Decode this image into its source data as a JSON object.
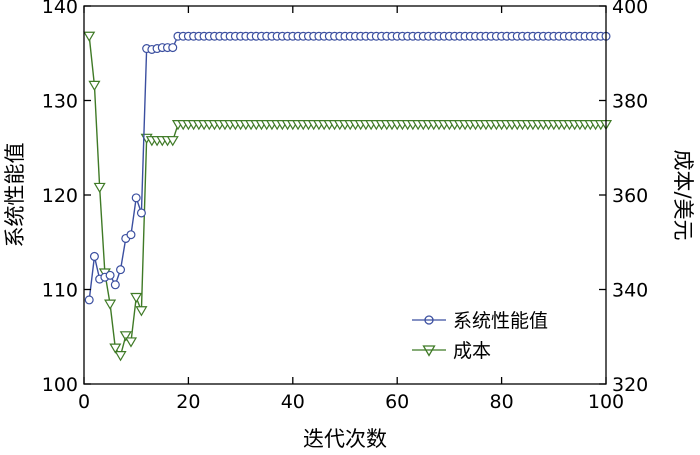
{
  "chart_data": {
    "type": "line",
    "xlabel": "迭代次数",
    "ylabel_left": "系统性能值",
    "ylabel_right": "成本/美元",
    "xlim": [
      0,
      100
    ],
    "ylim_left": [
      100,
      140
    ],
    "ylim_right": [
      320,
      400
    ],
    "xticks": [
      "0",
      "20",
      "40",
      "60",
      "80",
      "100"
    ],
    "yticks_left": [
      "100",
      "110",
      "120",
      "130",
      "140"
    ],
    "yticks_right": [
      "320",
      "340",
      "360",
      "380",
      "400"
    ],
    "grid": false,
    "legend_position": "bottom-right",
    "colors": {
      "performance": "#3b4fa0",
      "cost": "#3f7a26",
      "axis": "#000000"
    },
    "x": [
      1,
      2,
      3,
      4,
      5,
      6,
      7,
      8,
      9,
      10,
      11,
      12,
      13,
      14,
      15,
      16,
      17,
      18,
      19,
      20,
      21,
      22,
      23,
      24,
      25,
      26,
      27,
      28,
      29,
      30,
      31,
      32,
      33,
      34,
      35,
      36,
      37,
      38,
      39,
      40,
      41,
      42,
      43,
      44,
      45,
      46,
      47,
      48,
      49,
      50,
      51,
      52,
      53,
      54,
      55,
      56,
      57,
      58,
      59,
      60,
      61,
      62,
      63,
      64,
      65,
      66,
      67,
      68,
      69,
      70,
      71,
      72,
      73,
      74,
      75,
      76,
      77,
      78,
      79,
      80,
      81,
      82,
      83,
      84,
      85,
      86,
      87,
      88,
      89,
      90,
      91,
      92,
      93,
      94,
      95,
      96,
      97,
      98,
      99,
      100
    ],
    "series": [
      {
        "name": "系统性能值",
        "axis": "left",
        "marker": "circle",
        "values": [
          108.9,
          113.5,
          111.1,
          111.3,
          111.5,
          110.5,
          112.1,
          115.4,
          115.8,
          119.7,
          118.1,
          135.5,
          135.4,
          135.5,
          135.6,
          135.6,
          135.6,
          136.8,
          136.8,
          136.8,
          136.8,
          136.8,
          136.8,
          136.8,
          136.8,
          136.8,
          136.8,
          136.8,
          136.8,
          136.8,
          136.8,
          136.8,
          136.8,
          136.8,
          136.8,
          136.8,
          136.8,
          136.8,
          136.8,
          136.8,
          136.8,
          136.8,
          136.8,
          136.8,
          136.8,
          136.8,
          136.8,
          136.8,
          136.8,
          136.8,
          136.8,
          136.8,
          136.8,
          136.8,
          136.8,
          136.8,
          136.8,
          136.8,
          136.8,
          136.8,
          136.8,
          136.8,
          136.8,
          136.8,
          136.8,
          136.8,
          136.8,
          136.8,
          136.8,
          136.8,
          136.8,
          136.8,
          136.8,
          136.8,
          136.8,
          136.8,
          136.8,
          136.8,
          136.8,
          136.8,
          136.8,
          136.8,
          136.8,
          136.8,
          136.8,
          136.8,
          136.8,
          136.8,
          136.8,
          136.8,
          136.8,
          136.8,
          136.8,
          136.8,
          136.8,
          136.8,
          136.8,
          136.8,
          136.8,
          136.8
        ]
      },
      {
        "name": "成本",
        "axis": "right",
        "marker": "triangle-down",
        "values": [
          393.6,
          383.2,
          361.6,
          343.5,
          336.9,
          327.6,
          326.0,
          330.2,
          328.9,
          338.3,
          335.5,
          372.0,
          371.5,
          371.5,
          371.5,
          371.5,
          371.5,
          374.9,
          374.9,
          374.9,
          374.9,
          374.9,
          374.9,
          374.9,
          374.9,
          374.9,
          374.9,
          374.9,
          374.9,
          374.9,
          374.9,
          374.9,
          374.9,
          374.9,
          374.9,
          374.9,
          374.9,
          374.9,
          374.9,
          374.9,
          374.9,
          374.9,
          374.9,
          374.9,
          374.9,
          374.9,
          374.9,
          374.9,
          374.9,
          374.9,
          374.9,
          374.9,
          374.9,
          374.9,
          374.9,
          374.9,
          374.9,
          374.9,
          374.9,
          374.9,
          374.9,
          374.9,
          374.9,
          374.9,
          374.9,
          374.9,
          374.9,
          374.9,
          374.9,
          374.9,
          374.9,
          374.9,
          374.9,
          374.9,
          374.9,
          374.9,
          374.9,
          374.9,
          374.9,
          374.9,
          374.9,
          374.9,
          374.9,
          374.9,
          374.9,
          374.9,
          374.9,
          374.9,
          374.9,
          374.9,
          374.9,
          374.9,
          374.9,
          374.9,
          374.9,
          374.9,
          374.9,
          374.9,
          374.9,
          374.9
        ]
      }
    ]
  }
}
